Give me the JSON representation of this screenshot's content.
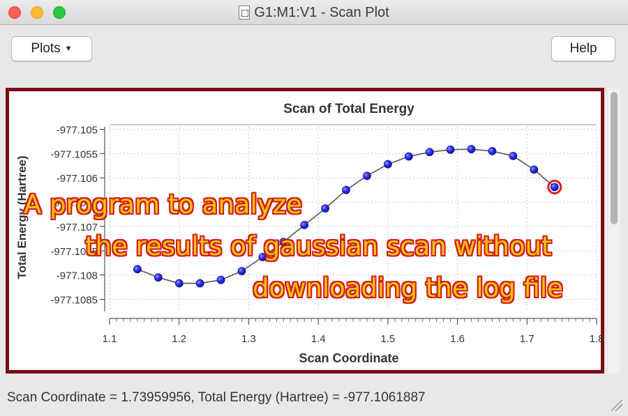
{
  "window": {
    "title": "G1:M1:V1 - Scan Plot"
  },
  "toolbar": {
    "plots_label": "Plots",
    "help_label": "Help"
  },
  "chart_data": {
    "type": "line",
    "title": "Scan of Total Energy",
    "xlabel": "Scan Coordinate",
    "ylabel": "Total Energy (Hartree)",
    "xlim": [
      1.1,
      1.8
    ],
    "ylim": [
      -977.10875,
      -977.10495
    ],
    "xticks": [
      "1.1",
      "1.2",
      "1.3",
      "1.4",
      "1.5",
      "1.6",
      "1.7",
      "1.8"
    ],
    "yticks": [
      "-977.105",
      "-977.1055",
      "-977.106",
      "-977.1065",
      "-977.107",
      "-977.1075",
      "-977.108",
      "-977.1085"
    ],
    "grid": true,
    "series": [
      {
        "x": [
          1.14,
          1.17,
          1.2,
          1.23,
          1.26,
          1.29,
          1.32,
          1.35,
          1.38,
          1.41,
          1.44,
          1.47,
          1.5,
          1.53,
          1.56,
          1.59,
          1.62,
          1.65,
          1.68,
          1.71,
          1.7396
        ],
        "y": [
          -977.10788,
          -977.10805,
          -977.10817,
          -977.10817,
          -977.1081,
          -977.10792,
          -977.10763,
          -977.10732,
          -977.10697,
          -977.10663,
          -977.10625,
          -977.10596,
          -977.10572,
          -977.10556,
          -977.10547,
          -977.10542,
          -977.10541,
          -977.10545,
          -977.10555,
          -977.10583,
          -977.10619
        ]
      }
    ],
    "selected_index": 20,
    "colors": {
      "point": "#2a2ae8",
      "line": "#555555",
      "selected_ring": "#e02020"
    }
  },
  "status": {
    "text": "Scan Coordinate = 1.73959956, Total Energy (Hartree) = -977.1061887"
  },
  "overlay": {
    "line1": "A program to analyze",
    "line2": "the results of gaussian scan without",
    "line3": "downloading the log file"
  }
}
